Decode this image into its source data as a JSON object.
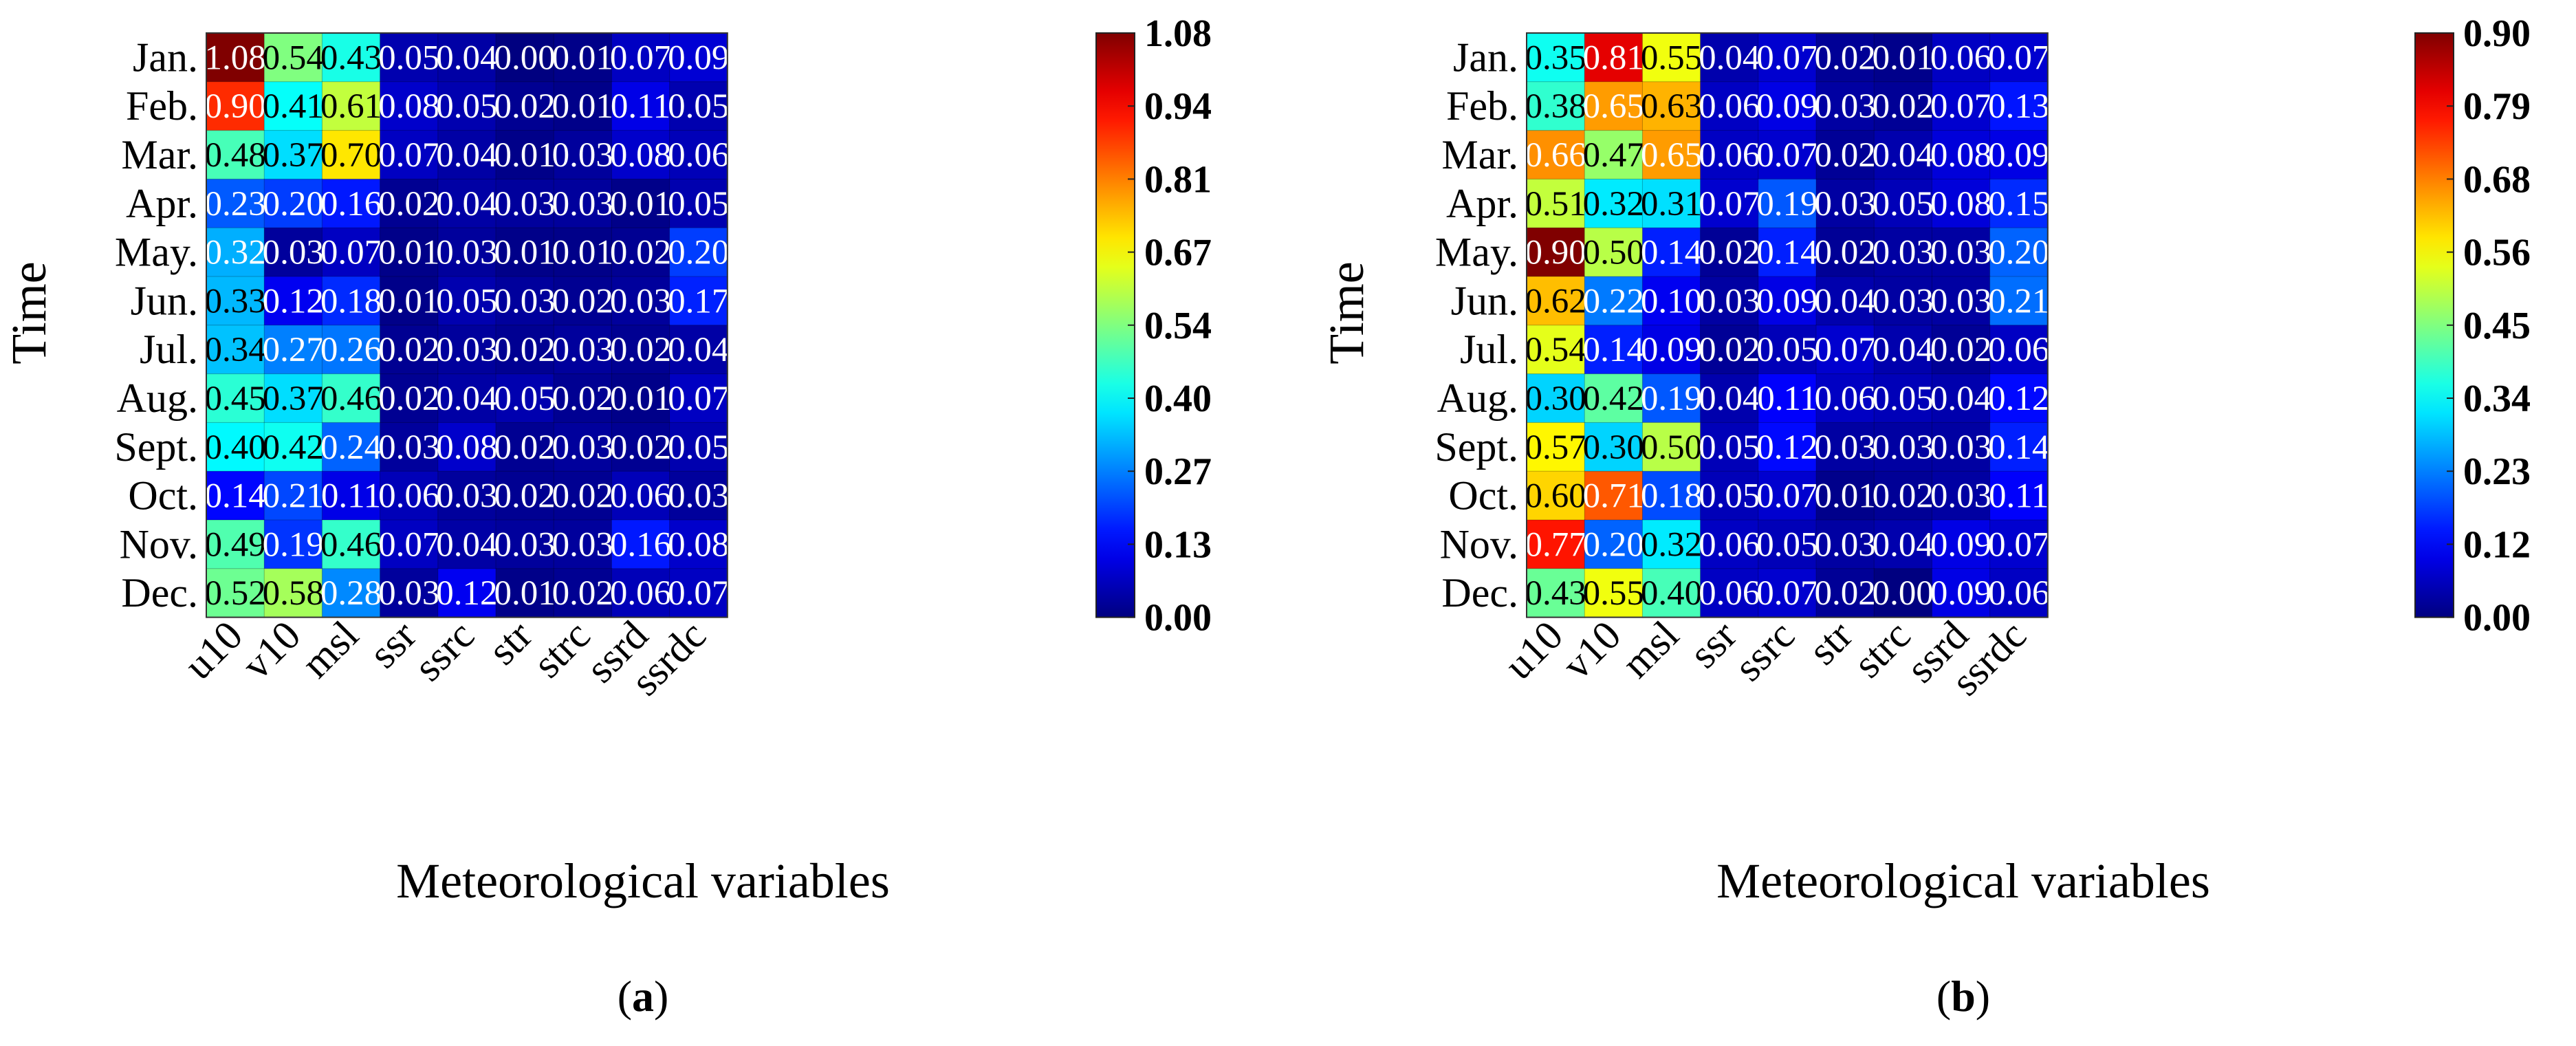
{
  "chart_data": [
    {
      "type": "heatmap",
      "panel_label": "a",
      "xlabel": "Meteorological variables",
      "ylabel": "Time",
      "x_categories": [
        "u10",
        "v10",
        "msl",
        "ssr",
        "ssrc",
        "str",
        "strc",
        "ssrd",
        "ssrdc"
      ],
      "y_categories": [
        "Jan.",
        "Feb.",
        "Mar.",
        "Apr.",
        "May.",
        "Jun.",
        "Jul.",
        "Aug.",
        "Sept.",
        "Oct.",
        "Nov.",
        "Dec."
      ],
      "values": [
        [
          1.08,
          0.54,
          0.43,
          0.05,
          0.04,
          0.0,
          0.01,
          0.07,
          0.09
        ],
        [
          0.9,
          0.41,
          0.61,
          0.08,
          0.05,
          0.02,
          0.01,
          0.11,
          0.05
        ],
        [
          0.48,
          0.37,
          0.7,
          0.07,
          0.04,
          0.01,
          0.03,
          0.08,
          0.06
        ],
        [
          0.23,
          0.2,
          0.16,
          0.02,
          0.04,
          0.03,
          0.03,
          0.01,
          0.05
        ],
        [
          0.32,
          0.03,
          0.07,
          0.01,
          0.03,
          0.01,
          0.01,
          0.02,
          0.2
        ],
        [
          0.33,
          0.12,
          0.18,
          0.01,
          0.05,
          0.03,
          0.02,
          0.03,
          0.17
        ],
        [
          0.34,
          0.27,
          0.26,
          0.02,
          0.03,
          0.02,
          0.03,
          0.02,
          0.04
        ],
        [
          0.45,
          0.37,
          0.46,
          0.02,
          0.04,
          0.05,
          0.02,
          0.01,
          0.07
        ],
        [
          0.4,
          0.42,
          0.24,
          0.03,
          0.08,
          0.02,
          0.03,
          0.02,
          0.05
        ],
        [
          0.14,
          0.21,
          0.11,
          0.06,
          0.03,
          0.02,
          0.02,
          0.06,
          0.03
        ],
        [
          0.49,
          0.19,
          0.46,
          0.07,
          0.04,
          0.03,
          0.03,
          0.16,
          0.08
        ],
        [
          0.52,
          0.58,
          0.28,
          0.03,
          0.12,
          0.01,
          0.02,
          0.06,
          0.07
        ]
      ],
      "colorbar": {
        "min": 0.0,
        "max": 1.08,
        "colormap": "jet",
        "ticks": [
          "0.00",
          "0.13",
          "0.27",
          "0.40",
          "0.54",
          "0.67",
          "0.81",
          "0.94",
          "1.08"
        ]
      }
    },
    {
      "type": "heatmap",
      "panel_label": "b",
      "xlabel": "Meteorological variables",
      "ylabel": "Time",
      "x_categories": [
        "u10",
        "v10",
        "msl",
        "ssr",
        "ssrc",
        "str",
        "strc",
        "ssrd",
        "ssrdc"
      ],
      "y_categories": [
        "Jan.",
        "Feb.",
        "Mar.",
        "Apr.",
        "May.",
        "Jun.",
        "Jul.",
        "Aug.",
        "Sept.",
        "Oct.",
        "Nov.",
        "Dec."
      ],
      "values": [
        [
          0.35,
          0.81,
          0.55,
          0.04,
          0.07,
          0.02,
          0.01,
          0.06,
          0.07
        ],
        [
          0.38,
          0.65,
          0.63,
          0.06,
          0.09,
          0.03,
          0.02,
          0.07,
          0.13
        ],
        [
          0.66,
          0.47,
          0.65,
          0.06,
          0.07,
          0.02,
          0.04,
          0.08,
          0.09
        ],
        [
          0.51,
          0.32,
          0.31,
          0.07,
          0.19,
          0.03,
          0.05,
          0.08,
          0.15
        ],
        [
          0.9,
          0.5,
          0.14,
          0.02,
          0.14,
          0.02,
          0.03,
          0.03,
          0.2
        ],
        [
          0.62,
          0.22,
          0.1,
          0.03,
          0.09,
          0.04,
          0.03,
          0.03,
          0.21
        ],
        [
          0.54,
          0.14,
          0.09,
          0.02,
          0.05,
          0.07,
          0.04,
          0.02,
          0.06
        ],
        [
          0.3,
          0.42,
          0.19,
          0.04,
          0.11,
          0.06,
          0.05,
          0.04,
          0.12
        ],
        [
          0.57,
          0.3,
          0.5,
          0.05,
          0.12,
          0.03,
          0.03,
          0.03,
          0.14
        ],
        [
          0.6,
          0.71,
          0.18,
          0.05,
          0.07,
          0.01,
          0.02,
          0.03,
          0.11
        ],
        [
          0.77,
          0.2,
          0.32,
          0.06,
          0.05,
          0.03,
          0.04,
          0.09,
          0.07
        ],
        [
          0.43,
          0.55,
          0.4,
          0.06,
          0.07,
          0.02,
          0.0,
          0.09,
          0.06
        ]
      ],
      "colorbar": {
        "min": 0.0,
        "max": 0.9,
        "colormap": "jet",
        "ticks": [
          "0.00",
          "0.12",
          "0.23",
          "0.34",
          "0.45",
          "0.56",
          "0.68",
          "0.79",
          "0.90"
        ]
      }
    }
  ]
}
